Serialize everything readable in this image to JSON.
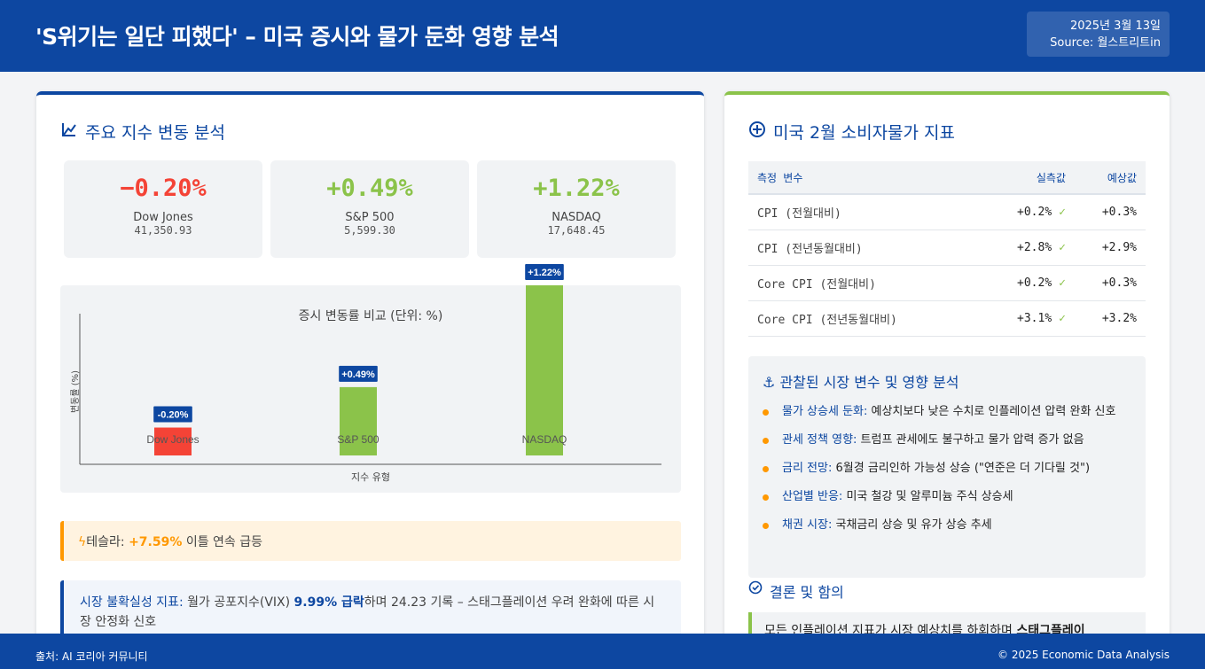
{
  "header": {
    "title": "'S위기는 일단 피했다' – 미국 증시와 물가 둔화 영향 분석",
    "date": "2025년 3월 13일",
    "source": "Source: 월스트리트in"
  },
  "left": {
    "section_title": "주요 지수 변동 분석",
    "section_icon": "chart-line-icon",
    "stats": [
      {
        "change": "−0.20%",
        "name": "Dow Jones",
        "value": "41,350.93",
        "color": "#f44336"
      },
      {
        "change": "+0.49%",
        "name": "S&P 500",
        "value": "5,599.30",
        "color": "#8bc34a"
      },
      {
        "change": "+1.22%",
        "name": "NASDAQ",
        "value": "17,648.45",
        "color": "#8bc34a"
      }
    ],
    "tesla": {
      "prefix": "테슬라: ",
      "highlight": "+7.59%",
      "suffix": " 이틀 연속 급등",
      "icon": "bolt-icon"
    },
    "vix": {
      "key": "시장 불확실성 지표:",
      "text1": " 월가 공포지수(VIX) ",
      "bold": "9.99% 급락",
      "text2": "하며 24.23 기록 – 스태그플레이션 우려 완화에 따른 시장 안정화 신호"
    }
  },
  "chart_data": {
    "type": "bar",
    "title": "증시 변동률 비교 (단위: %)",
    "xlabel": "지수 유형",
    "ylabel": "변동률 (%)",
    "categories": [
      "Dow Jones",
      "S&P 500",
      "NASDAQ"
    ],
    "values": [
      -0.2,
      0.49,
      1.22
    ],
    "data_labels": [
      "-0.20%",
      "+0.49%",
      "+1.22%"
    ],
    "colors": [
      "#f44336",
      "#8bc34a",
      "#8bc34a"
    ],
    "grid": false,
    "legend": "none"
  },
  "right": {
    "section_title": "미국 2월 소비자물가 지표",
    "section_icon": "plus-circle-icon",
    "table": {
      "headers": [
        "측정 변수",
        "실측값",
        "예상값"
      ],
      "rows": [
        {
          "label": "CPI (전월대비)",
          "actual": "+0.2%",
          "expected": "+0.3%"
        },
        {
          "label": "CPI (전년동월대비)",
          "actual": "+2.8%",
          "expected": "+2.9%"
        },
        {
          "label": "Core CPI (전월대비)",
          "actual": "+0.2%",
          "expected": "+0.3%"
        },
        {
          "label": "Core CPI (전년동월대비)",
          "actual": "+3.1%",
          "expected": "+3.2%"
        }
      ],
      "check": "✓"
    },
    "observed": {
      "title": "관찰된 시장 변수 및 영향 분석",
      "icon": "anchor-icon",
      "items": [
        {
          "key": "물가 상승세 둔화:",
          "text": " 예상치보다 낮은 수치로 인플레이션 압력 완화 신호"
        },
        {
          "key": "관세 정책 영향:",
          "text": " 트럼프 관세에도 불구하고 물가 압력 증가 없음"
        },
        {
          "key": "금리 전망:",
          "text": " 6월경 금리인하 가능성 상승 (\"연준은 더 기다릴 것\")"
        },
        {
          "key": "산업별 반응:",
          "text": " 미국 철강 및 알루미늄 주식 상승세"
        },
        {
          "key": "채권 시장:",
          "text": " 국채금리 상승 및 유가 상승 추세"
        }
      ]
    },
    "conclusion": {
      "title": "결론 및 함의",
      "icon": "check-circle-icon",
      "text": "모든 인플레이션 지표가 시장 예상치를 하회하며 ",
      "bold": "스태그플레이"
    }
  },
  "footer": {
    "left": "출처: AI 코리아 커뮤니티",
    "right": "© 2025 Economic Data Analysis"
  }
}
